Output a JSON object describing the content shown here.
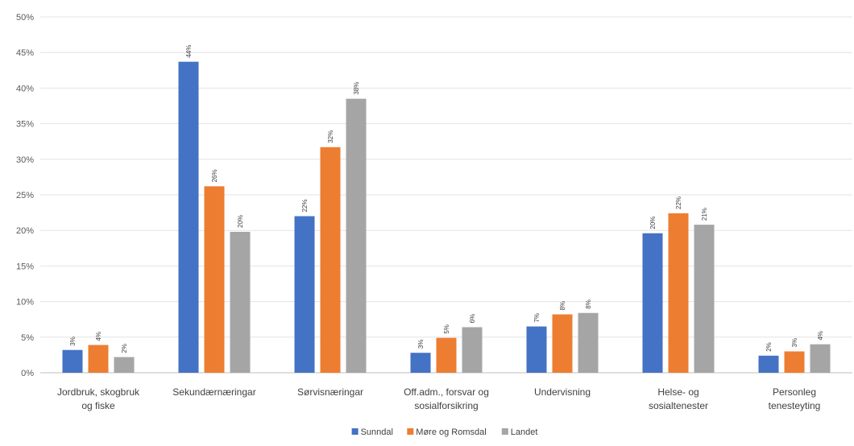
{
  "chart_data": {
    "type": "bar",
    "categories": [
      [
        "Jordbruk, skogbruk",
        "og fiske"
      ],
      [
        "Sekundærnæringar"
      ],
      [
        "Sørvisnæringar"
      ],
      [
        "Off.adm., forsvar og",
        "sosialforsikring"
      ],
      [
        "Undervisning"
      ],
      [
        "Helse- og",
        "sosialtenester"
      ],
      [
        "Personleg",
        "tenesteyting"
      ]
    ],
    "series": [
      {
        "name": "Sunndal",
        "color": "#4472C4",
        "values": [
          3.2,
          43.7,
          22.0,
          2.8,
          6.5,
          19.6,
          2.4
        ],
        "labels": [
          "3%",
          "44%",
          "22%",
          "3%",
          "7%",
          "20%",
          "2%"
        ]
      },
      {
        "name": "Møre og Romsdal",
        "color": "#ED7D31",
        "values": [
          3.9,
          26.2,
          31.7,
          4.9,
          8.2,
          22.4,
          3.0
        ],
        "labels": [
          "4%",
          "26%",
          "32%",
          "5%",
          "8%",
          "22%",
          "3%"
        ]
      },
      {
        "name": "Landet",
        "color": "#A5A5A5",
        "values": [
          2.2,
          19.8,
          38.5,
          6.4,
          8.4,
          20.8,
          4.0
        ],
        "labels": [
          "2%",
          "20%",
          "38%",
          "6%",
          "8%",
          "21%",
          "4%"
        ]
      }
    ],
    "ylim": [
      0,
      50
    ],
    "yticks": [
      0,
      5,
      10,
      15,
      20,
      25,
      30,
      35,
      40,
      45,
      50
    ],
    "ytick_suffix": "%",
    "grid": true,
    "legend_position": "bottom"
  }
}
